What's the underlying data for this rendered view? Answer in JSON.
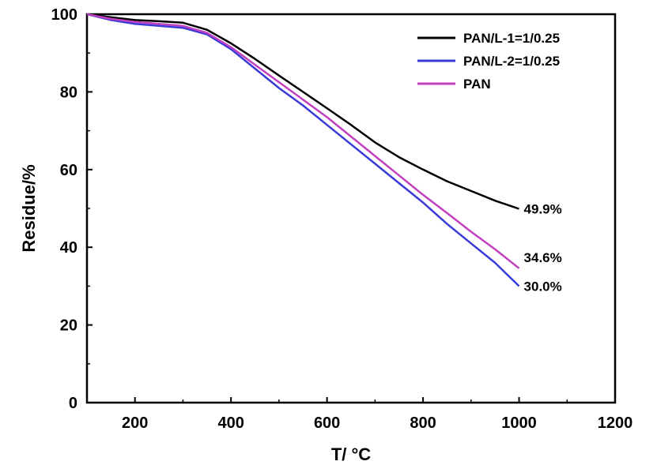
{
  "chart_data": {
    "type": "line",
    "xlabel": "T/ °C",
    "ylabel": "Residue/%",
    "xlim": [
      100,
      1200
    ],
    "ylim": [
      0,
      100
    ],
    "x_ticks": [
      200,
      400,
      600,
      800,
      1000,
      1200
    ],
    "y_ticks": [
      0,
      20,
      40,
      60,
      80,
      100
    ],
    "legend_position": "top-right",
    "grid": false,
    "series": [
      {
        "name": "PAN/L-1=1/0.25",
        "color": "#000000",
        "x": [
          100,
          150,
          200,
          250,
          300,
          350,
          400,
          450,
          500,
          550,
          600,
          650,
          700,
          750,
          800,
          850,
          900,
          950,
          1000
        ],
        "y": [
          100,
          99.2,
          98.5,
          98.2,
          97.8,
          96,
          92.5,
          88.5,
          84.2,
          80,
          75.8,
          71.5,
          67,
          63.2,
          60,
          57,
          54.5,
          52,
          49.9
        ],
        "end_label": "49.9%"
      },
      {
        "name": "PAN/L-2=1/0.25",
        "color": "#3a3ad8",
        "x": [
          100,
          150,
          200,
          250,
          300,
          350,
          400,
          450,
          500,
          550,
          600,
          650,
          700,
          750,
          800,
          850,
          900,
          950,
          1000
        ],
        "y": [
          100,
          98.5,
          97.5,
          97,
          96.5,
          94.8,
          91,
          86,
          81,
          76.5,
          71.5,
          66.5,
          61.5,
          56.5,
          51.5,
          46,
          41,
          36,
          30.0
        ],
        "end_label": "30.0%"
      },
      {
        "name": "PAN",
        "color": "#c040c0",
        "x": [
          100,
          150,
          200,
          250,
          300,
          350,
          400,
          450,
          500,
          550,
          600,
          650,
          700,
          750,
          800,
          850,
          900,
          950,
          1000
        ],
        "y": [
          100,
          98.8,
          98,
          97.5,
          97,
          95.2,
          91.5,
          87,
          82.5,
          78,
          73.5,
          68.5,
          63.5,
          58.5,
          53.5,
          48.8,
          44,
          39.5,
          34.6
        ],
        "end_label": "34.6%"
      }
    ]
  }
}
